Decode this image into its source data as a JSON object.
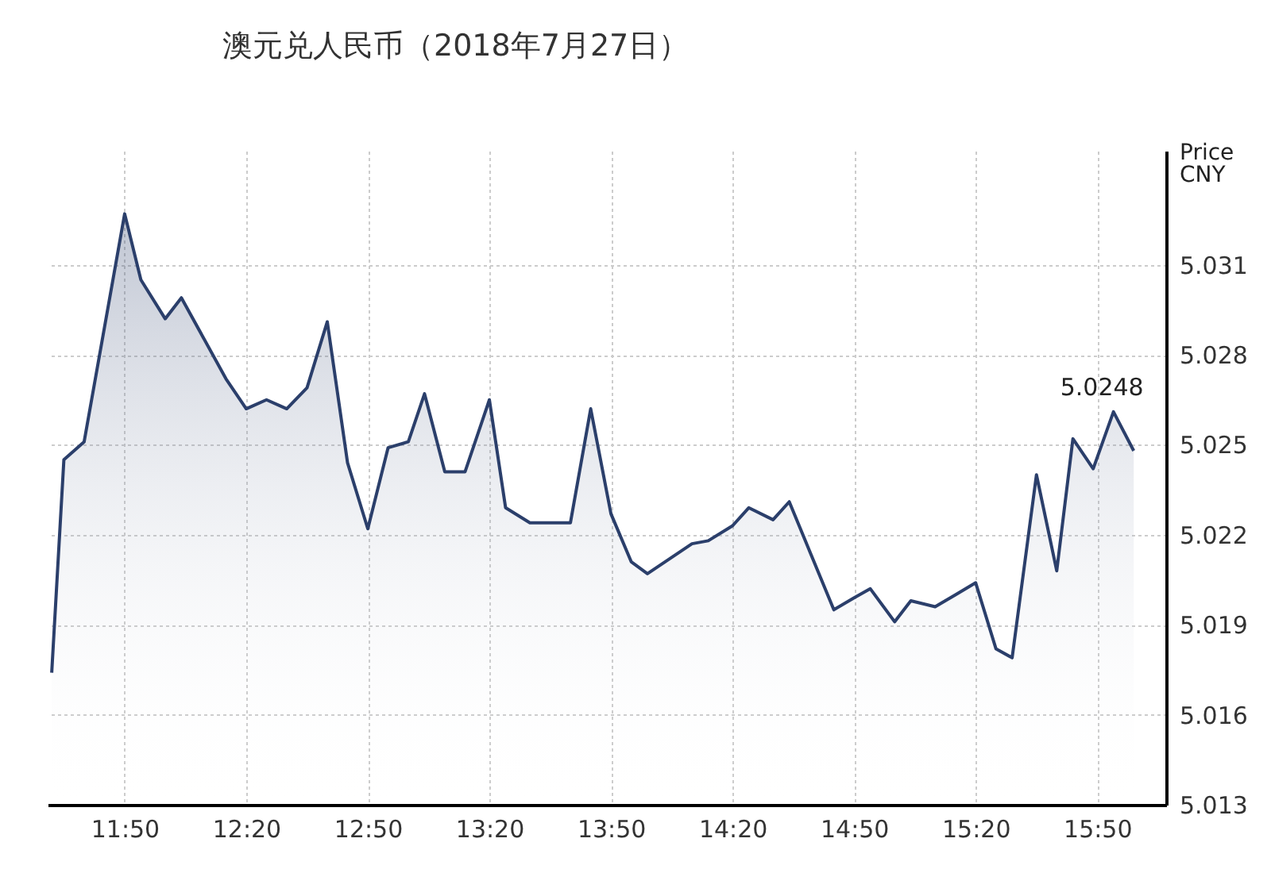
{
  "chart_data": {
    "type": "area",
    "title": "澳元兑人民币（2018年7月27日）",
    "ylabel": "Price CNY",
    "x": [
      "2018-07-27T11:32",
      "2018-07-27T11:35",
      "2018-07-27T11:40",
      "2018-07-27T11:50",
      "2018-07-27T11:54",
      "2018-07-27T12:00",
      "2018-07-27T12:04",
      "2018-07-27T12:15",
      "2018-07-27T12:20",
      "2018-07-27T12:25",
      "2018-07-27T12:30",
      "2018-07-27T12:35",
      "2018-07-27T12:40",
      "2018-07-27T12:45",
      "2018-07-27T12:50",
      "2018-07-27T12:55",
      "2018-07-27T13:00",
      "2018-07-27T13:04",
      "2018-07-27T13:09",
      "2018-07-27T13:14",
      "2018-07-27T13:20",
      "2018-07-27T13:24",
      "2018-07-27T13:30",
      "2018-07-27T13:40",
      "2018-07-27T13:45",
      "2018-07-27T13:50",
      "2018-07-27T13:55",
      "2018-07-27T13:59",
      "2018-07-27T14:10",
      "2018-07-27T14:14",
      "2018-07-27T14:20",
      "2018-07-27T14:24",
      "2018-07-27T14:30",
      "2018-07-27T14:34",
      "2018-07-27T14:45",
      "2018-07-27T14:50",
      "2018-07-27T14:54",
      "2018-07-27T15:00",
      "2018-07-27T15:04",
      "2018-07-27T15:10",
      "2018-07-27T15:15",
      "2018-07-27T15:20",
      "2018-07-27T15:25",
      "2018-07-27T15:29",
      "2018-07-27T15:35",
      "2018-07-27T15:40",
      "2018-07-27T15:44",
      "2018-07-27T15:49",
      "2018-07-27T15:54",
      "2018-07-27T15:59"
    ],
    "series": [
      {
        "color": "#2b3f6b",
        "values": [
          5.0174,
          5.0245,
          5.0251,
          5.0327,
          5.0305,
          5.0292,
          5.0299,
          5.0272,
          5.0262,
          5.0265,
          5.0262,
          5.0269,
          5.0291,
          5.0244,
          5.0222,
          5.0249,
          5.0251,
          5.0267,
          5.0241,
          5.0241,
          5.0265,
          5.0229,
          5.0224,
          5.0224,
          5.0262,
          5.0227,
          5.0211,
          5.0207,
          5.0217,
          5.0218,
          5.0223,
          5.0229,
          5.0225,
          5.0231,
          5.0195,
          5.0199,
          5.0202,
          5.0191,
          5.0198,
          5.0196,
          5.02,
          5.0204,
          5.0182,
          5.0179,
          5.024,
          5.0208,
          5.0252,
          5.0242,
          5.0261,
          5.0248
        ]
      }
    ],
    "xlim": [
      "2018-07-27T11:31",
      "2018-07-27T16:07"
    ],
    "xticks": [
      {
        "value": "2018-07-27T11:50",
        "label": "11:50"
      },
      {
        "value": "2018-07-27T12:20",
        "label": "12:20"
      },
      {
        "value": "2018-07-27T12:50",
        "label": "12:50"
      },
      {
        "value": "2018-07-27T13:20",
        "label": "13:20"
      },
      {
        "value": "2018-07-27T13:50",
        "label": "13:50"
      },
      {
        "value": "2018-07-27T14:20",
        "label": "14:20"
      },
      {
        "value": "2018-07-27T14:50",
        "label": "14:50"
      },
      {
        "value": "2018-07-27T15:20",
        "label": "15:20"
      },
      {
        "value": "2018-07-27T15:50",
        "label": "15:50"
      }
    ],
    "ylim": [
      5.013,
      5.0348
    ],
    "yticks": [
      5.013,
      5.016,
      5.019,
      5.022,
      5.025,
      5.028,
      5.031
    ],
    "grid": true,
    "annotations": [
      {
        "text": "5.0248",
        "x": "2018-07-27T15:59",
        "y": 5.0248
      }
    ]
  }
}
